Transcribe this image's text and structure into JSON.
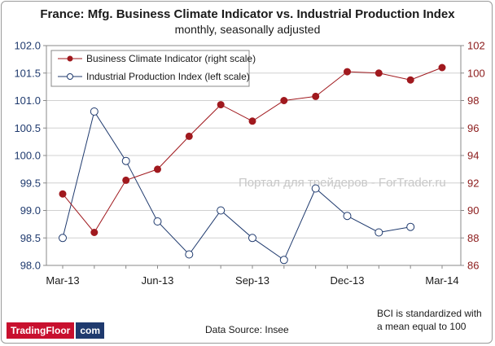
{
  "chart_data": {
    "type": "line",
    "title": "France: Mfg. Business Climate Indicator vs. Industrial Production Index",
    "subtitle": "monthly,  seasonally  adjusted",
    "x": [
      "Mar-13",
      "Apr-13",
      "May-13",
      "Jun-13",
      "Jul-13",
      "Aug-13",
      "Sep-13",
      "Oct-13",
      "Nov-13",
      "Dec-13",
      "Jan-14",
      "Feb-14",
      "Mar-14"
    ],
    "x_tick_labels": [
      "Mar-13",
      "Jun-13",
      "Sep-13",
      "Dec-13",
      "Mar-14"
    ],
    "left_axis": {
      "min": 98.0,
      "max": 102.0,
      "step": 0.5,
      "tick_labels": [
        "98.0",
        "98.5",
        "99.0",
        "99.5",
        "100.0",
        "100.5",
        "101.0",
        "101.5",
        "102.0"
      ]
    },
    "right_axis": {
      "min": 86,
      "max": 102,
      "step": 2,
      "tick_labels": [
        "86",
        "88",
        "90",
        "92",
        "94",
        "96",
        "98",
        "100",
        "102"
      ]
    },
    "grid": "horizontal",
    "legend_position": "top-left",
    "series": [
      {
        "name": "Business Climate Indicator (right scale)",
        "axis": "right",
        "color": "#a0191e",
        "marker": "filled-circle",
        "values": [
          91.2,
          88.4,
          92.2,
          93.0,
          95.4,
          97.7,
          96.5,
          98.0,
          98.3,
          100.1,
          100.0,
          99.5,
          100.4
        ]
      },
      {
        "name": "Industrial Production Index (left scale)",
        "axis": "left",
        "color": "#1f3a6e",
        "marker": "hollow-circle",
        "values": [
          98.5,
          100.8,
          99.9,
          98.8,
          98.2,
          99.0,
          98.5,
          98.1,
          99.4,
          98.9,
          98.6,
          98.7,
          null
        ]
      }
    ]
  },
  "footer": {
    "source": "Data Source:  Insee",
    "note_line1": "BCI is standardized with",
    "note_line2": "a mean equal to 100"
  },
  "logo": {
    "part1": "TradingFloor",
    "part2": "com"
  },
  "watermark": "Портал для трейдеров - ForTrader.ru"
}
